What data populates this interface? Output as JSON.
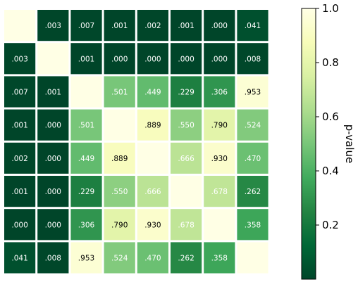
{
  "chart_data": {
    "type": "heatmap",
    "title": "",
    "matrix": [
      [
        null,
        0.003,
        0.007,
        0.001,
        0.002,
        0.001,
        0.0,
        0.041
      ],
      [
        0.003,
        null,
        0.001,
        0.0,
        0.0,
        0.0,
        0.0,
        0.008
      ],
      [
        0.007,
        0.001,
        null,
        0.501,
        0.449,
        0.229,
        0.306,
        0.953
      ],
      [
        0.001,
        0.0,
        0.501,
        null,
        0.889,
        0.55,
        0.79,
        0.524
      ],
      [
        0.002,
        0.0,
        0.449,
        0.889,
        null,
        0.666,
        0.93,
        0.47
      ],
      [
        0.001,
        0.0,
        0.229,
        0.55,
        0.666,
        null,
        0.678,
        0.262
      ],
      [
        0.0,
        0.0,
        0.306,
        0.79,
        0.93,
        0.678,
        null,
        0.358
      ],
      [
        0.041,
        0.008,
        0.953,
        0.524,
        0.47,
        0.262,
        0.358,
        null
      ]
    ],
    "cell_labels": [
      [
        "",
        ".003",
        ".007",
        ".001",
        ".002",
        ".001",
        ".000",
        ".041"
      ],
      [
        ".003",
        "",
        ".001",
        ".000",
        ".000",
        ".000",
        ".000",
        ".008"
      ],
      [
        ".007",
        ".001",
        "",
        ".501",
        ".449",
        ".229",
        ".306",
        ".953"
      ],
      [
        ".001",
        ".000",
        ".501",
        "",
        ".889",
        ".550",
        ".790",
        ".524"
      ],
      [
        ".002",
        ".000",
        ".449",
        ".889",
        "",
        ".666",
        ".930",
        ".470"
      ],
      [
        ".001",
        ".000",
        ".229",
        ".550",
        ".666",
        "",
        ".678",
        ".262"
      ],
      [
        ".000",
        ".000",
        ".306",
        ".790",
        ".930",
        ".678",
        "",
        ".358"
      ],
      [
        ".041",
        ".008",
        ".953",
        ".524",
        ".470",
        ".262",
        ".358",
        ""
      ]
    ],
    "diagonal_value": 1.0,
    "colormap": "YlGn_r",
    "colormap_stops": [
      "#004529",
      "#006837",
      "#238443",
      "#41ab5d",
      "#78c679",
      "#addd8e",
      "#d9f0a3",
      "#f7fcb9",
      "#ffffe5"
    ],
    "colorbar": {
      "label": "p-value",
      "range": [
        0,
        1
      ],
      "ticks": [
        0.2,
        0.4,
        0.6,
        0.8,
        1.0
      ],
      "tick_labels": [
        "0.2",
        "0.4",
        "0.6",
        "0.8",
        "1.0"
      ]
    },
    "grid": false
  }
}
